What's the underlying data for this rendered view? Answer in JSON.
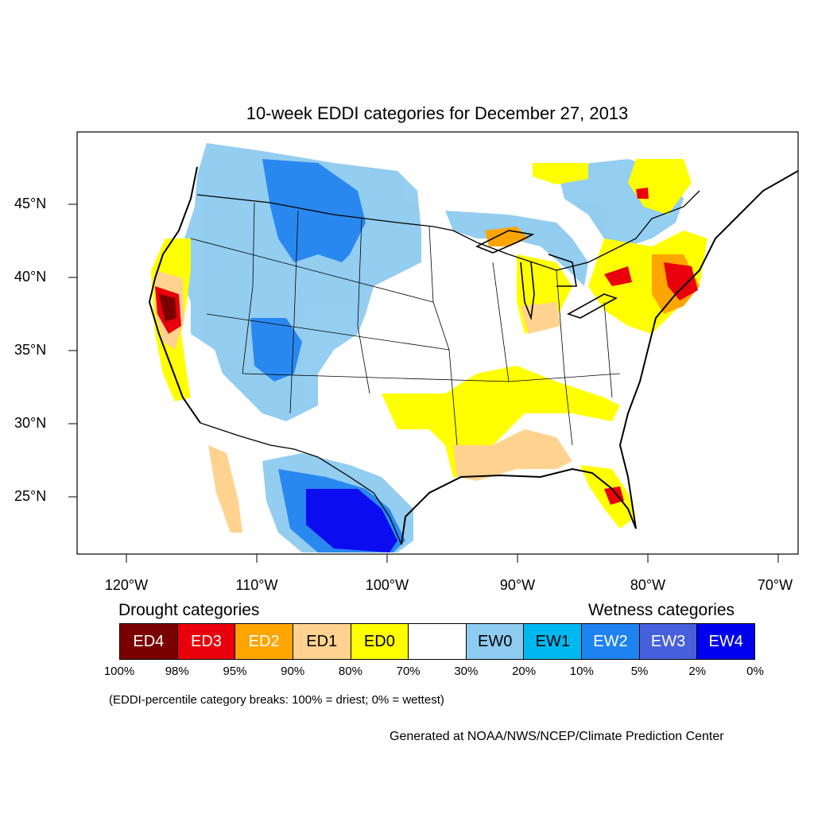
{
  "title": "10-week EDDI categories for December 27, 2013",
  "latitudes": [
    "45°N",
    "40°N",
    "35°N",
    "30°N",
    "25°N"
  ],
  "longitudes": [
    "120°W",
    "110°W",
    "100°W",
    "90°W",
    "80°W",
    "70°W"
  ],
  "drought_heading": "Drought categories",
  "wetness_heading": "Wetness categories",
  "legend": [
    {
      "label": "ED4",
      "color": "#7a0000",
      "text_color": "#ffffff"
    },
    {
      "label": "ED3",
      "color": "#e8000a",
      "text_color": "#ffffff"
    },
    {
      "label": "ED2",
      "color": "#ffa500",
      "text_color": "#ffffff"
    },
    {
      "label": "ED1",
      "color": "#ffd38f",
      "text_color": "#000000"
    },
    {
      "label": "ED0",
      "color": "#ffff00",
      "text_color": "#000000"
    },
    {
      "label": "",
      "color": "#ffffff",
      "text_color": "#000000"
    },
    {
      "label": "EW0",
      "color": "#8ecbf0",
      "text_color": "#000000"
    },
    {
      "label": "EW1",
      "color": "#00b8f0",
      "text_color": "#000000"
    },
    {
      "label": "EW2",
      "color": "#1e82f0",
      "text_color": "#ffffff"
    },
    {
      "label": "EW3",
      "color": "#4660dc",
      "text_color": "#ffffff"
    },
    {
      "label": "EW4",
      "color": "#0000f0",
      "text_color": "#ffffff"
    }
  ],
  "percent_breaks": [
    "100%",
    "98%",
    "95%",
    "90%",
    "80%",
    "70%",
    "30%",
    "20%",
    "10%",
    "5%",
    "2%",
    "0%"
  ],
  "note": "(EDDI-percentile category breaks: 100% = driest; 0% = wettest)",
  "credit": "Generated at NOAA/NWS/NCEP/Climate Prediction Center"
}
